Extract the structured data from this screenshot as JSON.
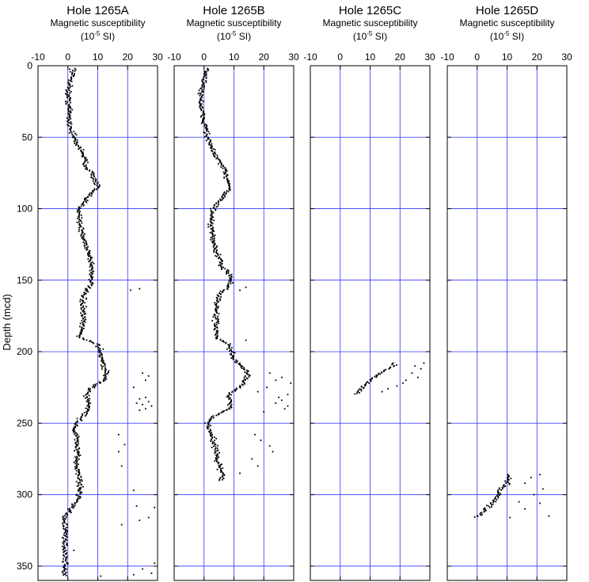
{
  "chart_data": {
    "type": "scatter",
    "ylabel": "Depth (mcd)",
    "y_ticks": [
      0,
      50,
      100,
      150,
      200,
      250,
      300,
      350
    ],
    "x_ticks": [
      -10,
      0,
      10,
      20,
      30
    ],
    "ylim": [
      0,
      360
    ],
    "xlim": [
      -10,
      30
    ],
    "grid": true,
    "grid_color": "#3333ff",
    "point_color": "#000000",
    "panels": [
      {
        "title": "Hole 1265A",
        "subtitle": "Magnetic susceptibility",
        "unit_prefix": "(10",
        "unit_exp": "-5",
        "unit_suffix": " SI)",
        "depth_range": [
          2,
          357
        ],
        "trend": [
          [
            2,
            2
          ],
          [
            10,
            1
          ],
          [
            20,
            0
          ],
          [
            30,
            0.5
          ],
          [
            40,
            0.5
          ],
          [
            50,
            2
          ],
          [
            55,
            3
          ],
          [
            60,
            5
          ],
          [
            70,
            6
          ],
          [
            75,
            8
          ],
          [
            80,
            9
          ],
          [
            85,
            10
          ],
          [
            90,
            7
          ],
          [
            100,
            4
          ],
          [
            110,
            4
          ],
          [
            120,
            5
          ],
          [
            130,
            7
          ],
          [
            140,
            8
          ],
          [
            150,
            8
          ],
          [
            155,
            7
          ],
          [
            160,
            5
          ],
          [
            170,
            5
          ],
          [
            180,
            5
          ],
          [
            190,
            4
          ],
          [
            195,
            10
          ],
          [
            200,
            11
          ],
          [
            210,
            12
          ],
          [
            215,
            13
          ],
          [
            220,
            12
          ],
          [
            225,
            8
          ],
          [
            230,
            6
          ],
          [
            235,
            7
          ],
          [
            240,
            7
          ],
          [
            245,
            5
          ],
          [
            250,
            3
          ],
          [
            255,
            2
          ],
          [
            260,
            3
          ],
          [
            270,
            3
          ],
          [
            280,
            3
          ],
          [
            290,
            4
          ],
          [
            300,
            4
          ],
          [
            305,
            3
          ],
          [
            310,
            1
          ],
          [
            315,
            -1
          ],
          [
            320,
            -1
          ],
          [
            330,
            -1
          ],
          [
            340,
            -1
          ],
          [
            350,
            -1
          ],
          [
            357,
            -1
          ]
        ],
        "outliers": [
          [
            156,
            24
          ],
          [
            157,
            21
          ],
          [
            215,
            25
          ],
          [
            217,
            27
          ],
          [
            220,
            26
          ],
          [
            225,
            22
          ],
          [
            232,
            26
          ],
          [
            233,
            24
          ],
          [
            235,
            27
          ],
          [
            236,
            23
          ],
          [
            237,
            25
          ],
          [
            238,
            28
          ],
          [
            240,
            26
          ],
          [
            241,
            24
          ],
          [
            258,
            17
          ],
          [
            265,
            19
          ],
          [
            270,
            17
          ],
          [
            280,
            18
          ],
          [
            297,
            22
          ],
          [
            308,
            23
          ],
          [
            309,
            29
          ],
          [
            316,
            27
          ],
          [
            318,
            24
          ],
          [
            321,
            18
          ],
          [
            339,
            2
          ],
          [
            348,
            29
          ],
          [
            352,
            25
          ],
          [
            355,
            28
          ],
          [
            356,
            22
          ],
          [
            357,
            11
          ]
        ]
      },
      {
        "title": "Hole 1265B",
        "subtitle": "Magnetic susceptibility",
        "unit_prefix": "(10",
        "unit_exp": "-5",
        "unit_suffix": " SI)",
        "depth_range": [
          2,
          290
        ],
        "trend": [
          [
            2,
            1
          ],
          [
            10,
            0
          ],
          [
            20,
            -1
          ],
          [
            30,
            -1
          ],
          [
            40,
            0
          ],
          [
            45,
            1
          ],
          [
            50,
            1
          ],
          [
            55,
            2
          ],
          [
            60,
            3
          ],
          [
            70,
            6
          ],
          [
            75,
            7
          ],
          [
            80,
            8
          ],
          [
            85,
            9
          ],
          [
            90,
            7
          ],
          [
            100,
            3
          ],
          [
            110,
            2
          ],
          [
            120,
            3
          ],
          [
            130,
            4
          ],
          [
            140,
            6
          ],
          [
            145,
            8
          ],
          [
            150,
            9
          ],
          [
            155,
            8
          ],
          [
            160,
            5
          ],
          [
            170,
            4
          ],
          [
            180,
            4
          ],
          [
            190,
            4
          ],
          [
            195,
            8
          ],
          [
            200,
            9
          ],
          [
            205,
            10
          ],
          [
            210,
            12
          ],
          [
            215,
            15
          ],
          [
            220,
            14
          ],
          [
            225,
            12
          ],
          [
            230,
            8
          ],
          [
            235,
            9
          ],
          [
            240,
            9
          ],
          [
            245,
            3
          ],
          [
            250,
            1
          ],
          [
            255,
            2
          ],
          [
            260,
            3
          ],
          [
            270,
            4
          ],
          [
            280,
            5
          ],
          [
            285,
            6
          ],
          [
            290,
            6
          ]
        ],
        "outliers": [
          [
            155,
            14
          ],
          [
            157,
            12
          ],
          [
            192,
            14
          ],
          [
            215,
            22
          ],
          [
            218,
            26
          ],
          [
            220,
            24
          ],
          [
            222,
            29
          ],
          [
            225,
            21
          ],
          [
            228,
            18
          ],
          [
            230,
            28
          ],
          [
            232,
            25
          ],
          [
            234,
            26
          ],
          [
            236,
            24
          ],
          [
            238,
            28
          ],
          [
            240,
            27
          ],
          [
            242,
            20
          ],
          [
            258,
            17
          ],
          [
            262,
            19
          ],
          [
            266,
            22
          ],
          [
            270,
            23
          ],
          [
            275,
            16
          ],
          [
            280,
            18
          ],
          [
            285,
            12
          ]
        ]
      },
      {
        "title": "Hole 1265C",
        "subtitle": "Magnetic susceptibility",
        "unit_prefix": "(10",
        "unit_exp": "-5",
        "unit_suffix": " SI)",
        "depth_range": [
          208,
          230
        ],
        "trend": [
          [
            208,
            18
          ],
          [
            210,
            18
          ],
          [
            212,
            16
          ],
          [
            214,
            14
          ],
          [
            216,
            13
          ],
          [
            218,
            11
          ],
          [
            220,
            10
          ],
          [
            222,
            9
          ],
          [
            224,
            8
          ],
          [
            226,
            7
          ],
          [
            228,
            6
          ],
          [
            230,
            5
          ]
        ],
        "outliers": [
          [
            208,
            28
          ],
          [
            210,
            25
          ],
          [
            212,
            27
          ],
          [
            215,
            24
          ],
          [
            218,
            26
          ],
          [
            220,
            22
          ],
          [
            222,
            21
          ],
          [
            224,
            19
          ],
          [
            226,
            16
          ],
          [
            228,
            14
          ]
        ]
      },
      {
        "title": "Hole 1265D",
        "subtitle": "Magnetic susceptibility",
        "unit_prefix": "(10",
        "unit_exp": "-5",
        "unit_suffix": " SI)",
        "depth_range": [
          286,
          316
        ],
        "trend": [
          [
            286,
            10
          ],
          [
            288,
            11
          ],
          [
            292,
            10
          ],
          [
            296,
            8
          ],
          [
            300,
            7
          ],
          [
            304,
            6
          ],
          [
            308,
            4
          ],
          [
            312,
            2
          ],
          [
            316,
            0
          ]
        ],
        "outliers": [
          [
            286,
            21
          ],
          [
            288,
            18
          ],
          [
            292,
            16
          ],
          [
            296,
            22
          ],
          [
            300,
            19
          ],
          [
            305,
            14
          ],
          [
            306,
            21
          ],
          [
            310,
            16
          ],
          [
            315,
            24
          ],
          [
            316,
            11
          ]
        ]
      }
    ]
  }
}
